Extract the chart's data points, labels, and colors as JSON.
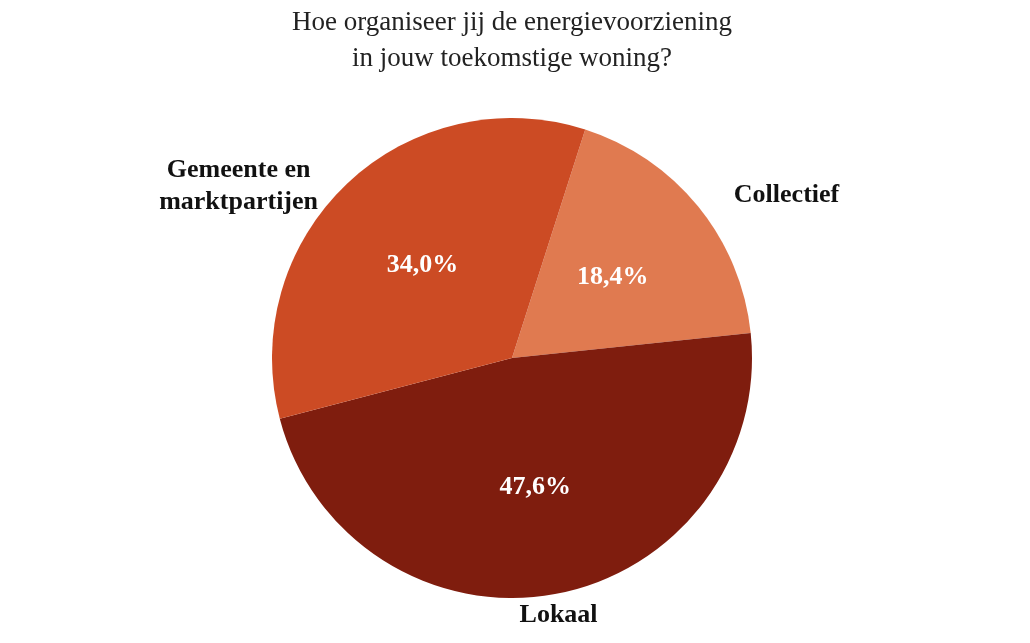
{
  "chart_data": {
    "type": "pie",
    "title": "Hoe organiseer jij de energievoorziening in jouw toekomstige woning?",
    "categories": [
      "Collectief",
      "Lokaal",
      "Gemeente en marktpartijen"
    ],
    "values": [
      18.4,
      47.6,
      34.0
    ],
    "value_labels": [
      "18,4%",
      "47,6%",
      "34,0%"
    ],
    "colors": [
      "#e07a50",
      "#7f1d0e",
      "#cc4b24"
    ]
  }
}
